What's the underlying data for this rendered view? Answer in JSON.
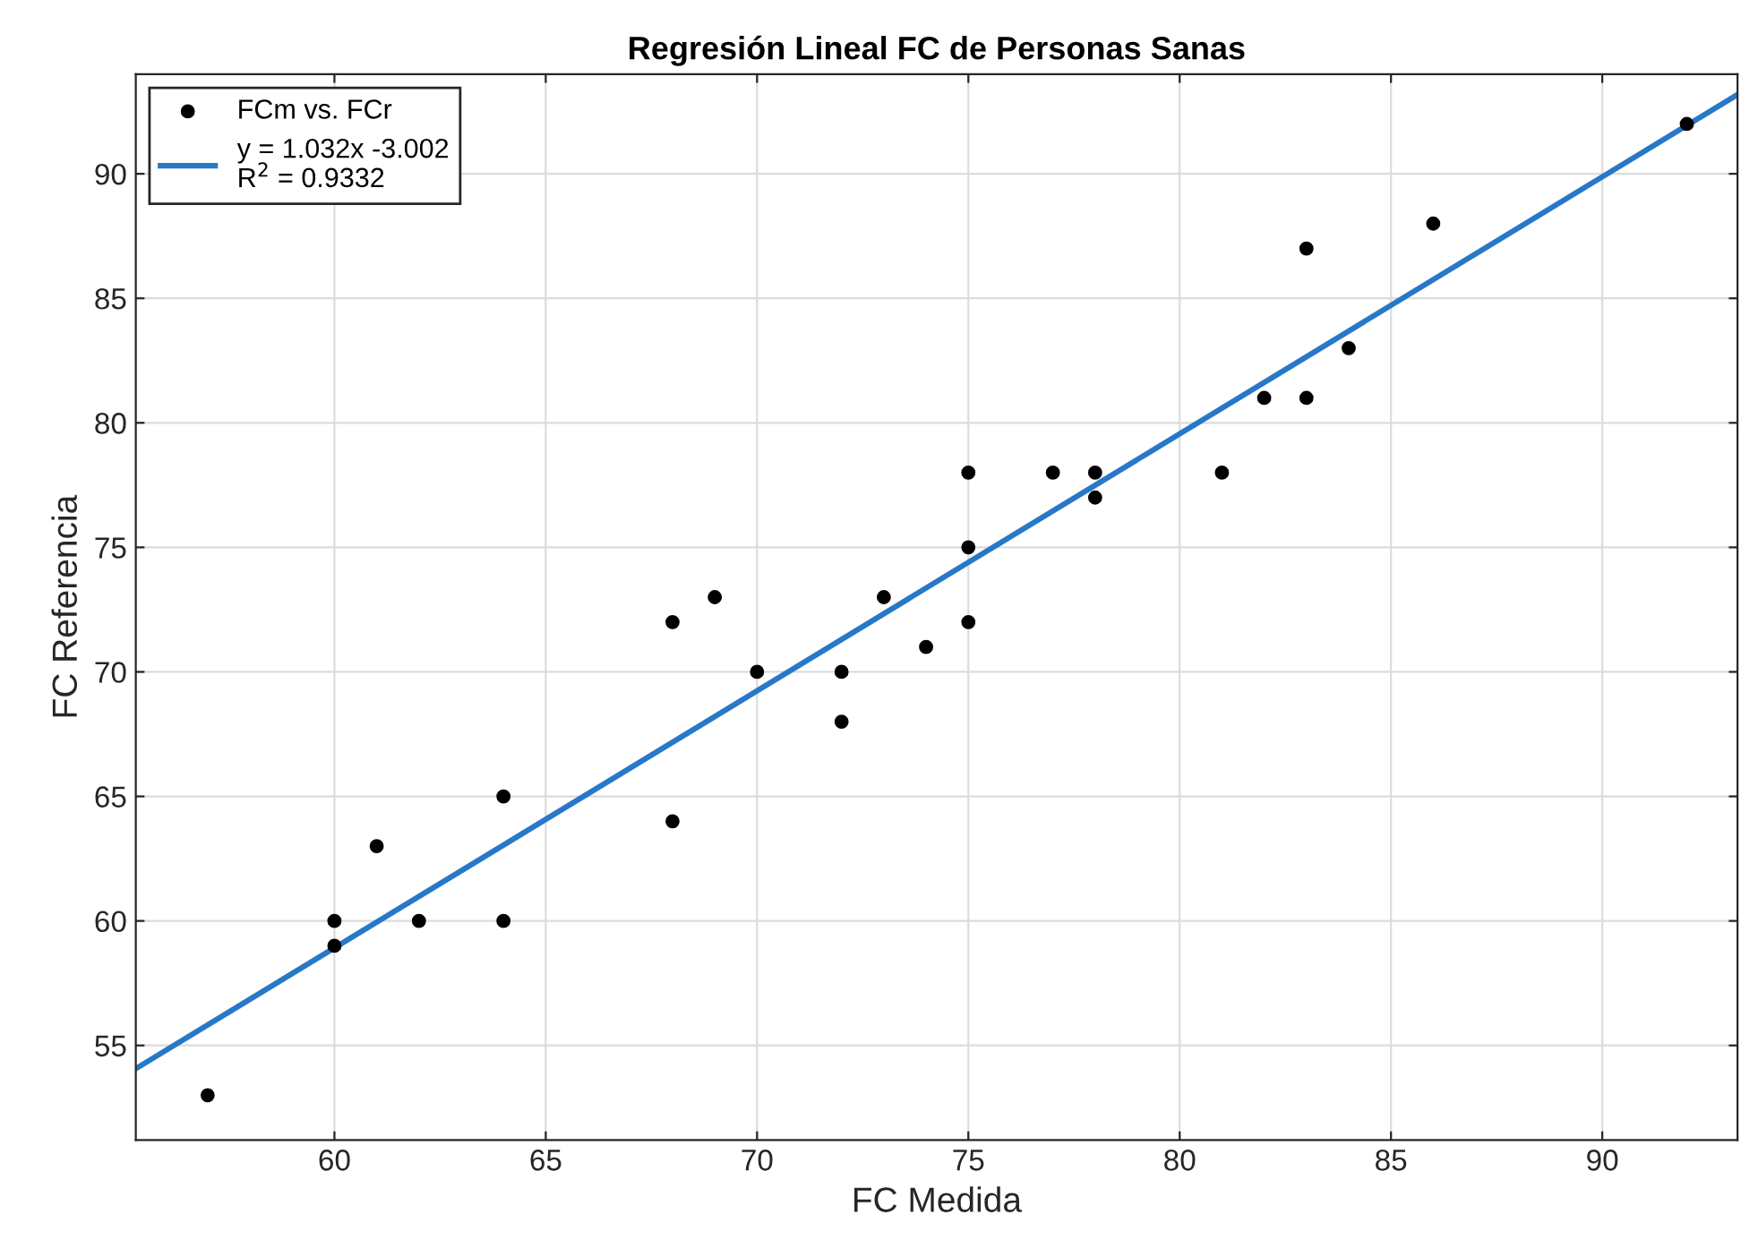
{
  "chart_data": {
    "type": "scatter",
    "title": "Regresión Lineal FC de Personas Sanas",
    "xlabel": "FC Medida",
    "ylabel": "FC Referencia",
    "xlim": [
      55.3,
      93.2
    ],
    "ylim": [
      51.2,
      94
    ],
    "xticks": [
      60,
      65,
      70,
      75,
      80,
      85,
      90
    ],
    "yticks": [
      55,
      60,
      65,
      70,
      75,
      80,
      85,
      90
    ],
    "grid": true,
    "legend": "top left",
    "series": [
      {
        "name": "FCm vs. FCr",
        "color": "#000000",
        "marker": "circle",
        "x": [
          57,
          60,
          60,
          61,
          62,
          64,
          64,
          68,
          68,
          69,
          70,
          72,
          72,
          73,
          74,
          75,
          75,
          75,
          77,
          78,
          78,
          81,
          82,
          83,
          83,
          84,
          86,
          92
        ],
        "values": [
          53,
          60,
          59,
          63,
          60,
          65,
          60,
          72,
          64,
          73,
          70,
          70,
          68,
          73,
          71,
          78,
          75,
          72,
          78,
          78,
          77,
          78,
          81,
          87,
          81,
          83,
          88,
          92
        ]
      },
      {
        "name": "y = 1.032x -3.002\nR$^{2}$ = 0.9332",
        "type": "line",
        "color": "#2878c8",
        "marker": "none",
        "line_style": "solid",
        "x": [
          55.3,
          93.2
        ],
        "values": [
          54.07,
          93.18
        ]
      }
    ]
  }
}
